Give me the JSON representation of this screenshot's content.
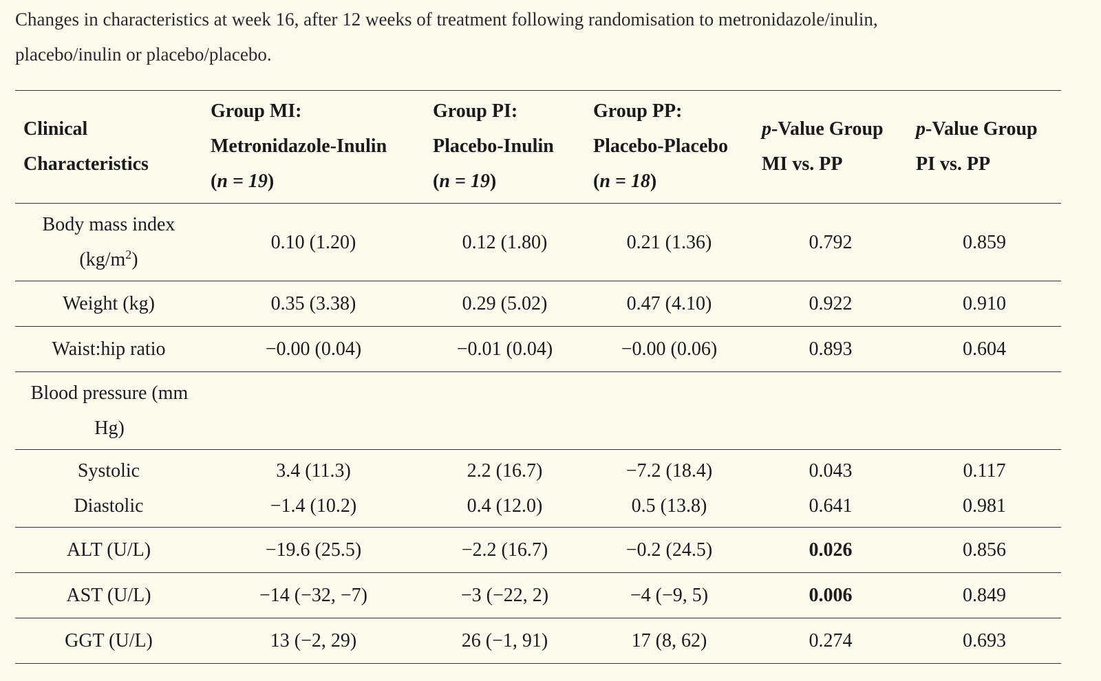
{
  "caption": {
    "line1": "Changes in characteristics at week 16, after 12 weeks of treatment following randomisation to metronidazole/inulin,",
    "line2": "placebo/inulin or placebo/placebo."
  },
  "header": {
    "col1": [
      "Clinical",
      "Characteristics"
    ],
    "col2": [
      "Group MI:",
      "Metronidazole-Inulin",
      "n = 19"
    ],
    "col3": [
      "Group PI:",
      "Placebo-Inulin",
      "n = 19"
    ],
    "col4": [
      "Group PP:",
      "Placebo-Placebo",
      "n = 18"
    ],
    "col5": [
      "p",
      "-Value Group",
      "MI vs. PP"
    ],
    "col6": [
      "p",
      "-Value Group",
      "PI vs. PP"
    ]
  },
  "rows": {
    "bmi": {
      "label_a": "Body mass index",
      "label_b": "(kg/m",
      "label_sup": "2",
      "label_c": ")",
      "mi": "0.10 (1.20)",
      "pi": "0.12 (1.80)",
      "pp": "0.21 (1.36)",
      "p_mi": "0.792",
      "p_pi": "0.859"
    },
    "weight": {
      "label": "Weight (kg)",
      "mi": "0.35 (3.38)",
      "pi": "0.29 (5.02)",
      "pp": "0.47 (4.10)",
      "p_mi": "0.922",
      "p_pi": "0.910"
    },
    "whr": {
      "label": "Waist:hip ratio",
      "mi": "−0.00 (0.04)",
      "pi": "−0.01 (0.04)",
      "pp": "−0.00 (0.06)",
      "p_mi": "0.893",
      "p_pi": "0.604"
    },
    "bp_header": {
      "line1": "Blood pressure (mm",
      "line2": "Hg)"
    },
    "systolic": {
      "label": "Systolic",
      "mi": "3.4 (11.3)",
      "pi": "2.2 (16.7)",
      "pp": "−7.2 (18.4)",
      "p_mi": "0.043",
      "p_pi": "0.117"
    },
    "diastolic": {
      "label": "Diastolic",
      "mi": "−1.4 (10.2)",
      "pi": "0.4 (12.0)",
      "pp": "0.5 (13.8)",
      "p_mi": "0.641",
      "p_pi": "0.981"
    },
    "alt": {
      "label": "ALT (U/L)",
      "mi": "−19.6 (25.5)",
      "pi": "−2.2 (16.7)",
      "pp": "−0.2 (24.5)",
      "p_mi": "0.026",
      "p_pi": "0.856"
    },
    "ast": {
      "label": "AST (U/L)",
      "mi": "−14 (−32, −7)",
      "pi": "−3 (−22, 2)",
      "pp": "−4 (−9, 5)",
      "p_mi": "0.006",
      "p_pi": "0.849"
    },
    "ggt": {
      "label": "GGT (U/L)",
      "mi": "13 (−2, 29)",
      "pi": "26 (−1, 91)",
      "pp": "17 (8, 62)",
      "p_mi": "0.274",
      "p_pi": "0.693"
    }
  }
}
